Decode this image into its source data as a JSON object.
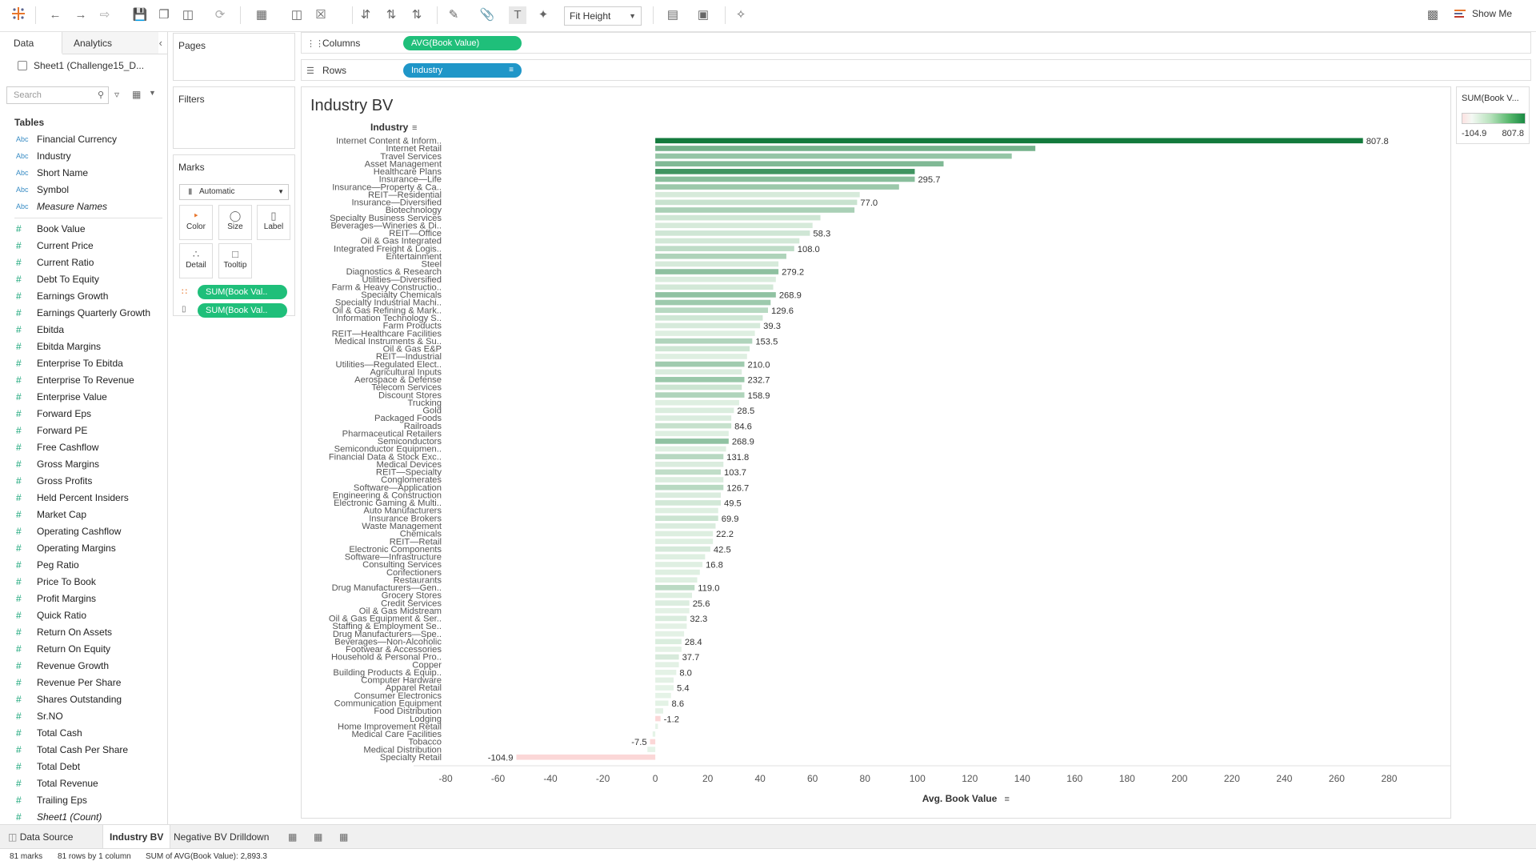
{
  "toolbar": {
    "fit_label": "Fit Height",
    "show_me_label": "Show Me"
  },
  "data_pane": {
    "tabs": [
      "Data",
      "Analytics"
    ],
    "datasource": "Sheet1 (Challenge15_D...",
    "search_placeholder": "Search",
    "tables_label": "Tables",
    "dimensions": [
      {
        "type": "Abc",
        "name": "Financial Currency"
      },
      {
        "type": "Abc",
        "name": "Industry"
      },
      {
        "type": "Abc",
        "name": "Short Name"
      },
      {
        "type": "Abc",
        "name": "Symbol"
      },
      {
        "type": "Abc",
        "name": "Measure Names",
        "italic": true
      }
    ],
    "measures": [
      "Book Value",
      "Current Price",
      "Current Ratio",
      "Debt To Equity",
      "Earnings Growth",
      "Earnings Quarterly Growth",
      "Ebitda",
      "Ebitda Margins",
      "Enterprise To Ebitda",
      "Enterprise To Revenue",
      "Enterprise Value",
      "Forward Eps",
      "Forward PE",
      "Free Cashflow",
      "Gross Margins",
      "Gross Profits",
      "Held Percent Insiders",
      "Market Cap",
      "Operating Cashflow",
      "Operating Margins",
      "Peg Ratio",
      "Price To Book",
      "Profit Margins",
      "Quick Ratio",
      "Return On Assets",
      "Return On Equity",
      "Revenue Growth",
      "Revenue Per Share",
      "Shares Outstanding",
      "Sr.NO",
      "Total Cash",
      "Total Cash Per Share",
      "Total Debt",
      "Total Revenue",
      "Trailing Eps"
    ],
    "count_field": "Sheet1 (Count)",
    "measure_type_glyph": "#"
  },
  "shelves": {
    "pages_label": "Pages",
    "filters_label": "Filters",
    "marks_label": "Marks",
    "marks_type": "Automatic",
    "mark_buttons": [
      "Color",
      "Size",
      "Label",
      "Detail",
      "Tooltip"
    ],
    "marks_pills": [
      "SUM(Book Val..",
      "SUM(Book Val.."
    ],
    "columns_label": "Columns",
    "columns_pill": "AVG(Book Value)",
    "rows_label": "Rows",
    "rows_pill": "Industry"
  },
  "viz": {
    "title": "Industry BV",
    "row_header": "Industry"
  },
  "legend": {
    "title": "SUM(Book V...",
    "min": "-104.9",
    "max": "807.8"
  },
  "chart_data": {
    "type": "bar",
    "orientation": "horizontal",
    "xlabel": "Avg. Book Value",
    "ylabel": "Industry",
    "xlim": [
      -80,
      300
    ],
    "xticks": [
      -80,
      -60,
      -40,
      -20,
      0,
      20,
      40,
      60,
      80,
      100,
      120,
      140,
      160,
      180,
      200,
      220,
      240,
      260,
      280
    ],
    "grid": false,
    "colors": {
      "positive_dark": "#137a3c",
      "positive_light": "#e9f5ea",
      "negative": "#fbd7d7"
    },
    "categories": [
      "Internet Content & Inform..",
      "Internet Retail",
      "Travel Services",
      "Asset Management",
      "Healthcare Plans",
      "Insurance—Life",
      "Insurance—Property & Ca..",
      "REIT—Residential",
      "Insurance—Diversified",
      "Biotechnology",
      "Specialty Business Services",
      "Beverages—Wineries & Di..",
      "REIT—Office",
      "Oil & Gas Integrated",
      "Integrated Freight & Logis..",
      "Entertainment",
      "Steel",
      "Diagnostics & Research",
      "Utilities—Diversified",
      "Farm & Heavy Constructio..",
      "Specialty Chemicals",
      "Specialty Industrial Machi..",
      "Oil & Gas Refining & Mark..",
      "Information Technology S..",
      "Farm Products",
      "REIT—Healthcare Facilities",
      "Medical Instruments & Su..",
      "Oil & Gas E&P",
      "REIT—Industrial",
      "Utilities—Regulated Elect..",
      "Agricultural Inputs",
      "Aerospace & Defense",
      "Telecom Services",
      "Discount Stores",
      "Trucking",
      "Gold",
      "Packaged Foods",
      "Railroads",
      "Pharmaceutical Retailers",
      "Semiconductors",
      "Semiconductor Equipmen..",
      "Financial Data & Stock Exc..",
      "Medical Devices",
      "REIT—Specialty",
      "Conglomerates",
      "Software—Application",
      "Engineering & Construction",
      "Electronic Gaming & Multi..",
      "Auto Manufacturers",
      "Insurance Brokers",
      "Waste Management",
      "Chemicals",
      "REIT—Retail",
      "Electronic Components",
      "Software—Infrastructure",
      "Consulting Services",
      "Confectioners",
      "Restaurants",
      "Drug Manufacturers—Gen..",
      "Grocery Stores",
      "Credit Services",
      "Oil & Gas Midstream",
      "Oil & Gas Equipment & Ser..",
      "Staffing & Employment Se..",
      "Drug Manufacturers—Spe..",
      "Beverages—Non-Alcoholic",
      "Footwear & Accessories",
      "Household & Personal Pro..",
      "Copper",
      "Building Products & Equip..",
      "Computer Hardware",
      "Apparel Retail",
      "Consumer Electronics",
      "Communication Equipment",
      "Food Distribution",
      "Lodging",
      "Home Improvement Retail",
      "Medical Care Facilities",
      "Tobacco",
      "Medical Distribution",
      "Specialty Retail"
    ],
    "values": [
      270,
      145,
      136,
      110,
      99,
      99,
      93,
      78,
      77,
      76,
      63,
      60,
      59,
      55,
      53,
      50,
      47,
      47,
      46,
      45,
      46,
      44,
      43,
      41,
      40,
      38,
      37,
      36,
      35,
      34,
      33,
      34,
      33,
      34,
      32,
      30,
      29,
      29,
      28,
      28,
      27,
      26,
      26,
      25,
      26,
      26,
      25,
      25,
      24,
      24,
      23,
      22,
      22,
      21,
      19,
      18,
      17,
      16,
      15,
      14,
      13,
      13,
      12,
      12,
      11,
      10,
      10,
      9,
      9,
      8,
      7,
      7,
      6,
      5,
      3,
      2,
      1,
      -1,
      -2,
      -3,
      -53
    ],
    "data_labels": [
      "807.8",
      "",
      "",
      "",
      "",
      "295.7",
      "",
      "",
      "77.0",
      "",
      "",
      "",
      "58.3",
      "",
      "108.0",
      "",
      "",
      "279.2",
      "",
      "",
      "268.9",
      "",
      "129.6",
      "",
      "39.3",
      "",
      "153.5",
      "",
      "",
      "210.0",
      "",
      "232.7",
      "",
      "158.9",
      "",
      "28.5",
      "",
      "84.6",
      "",
      "268.9",
      "",
      "131.8",
      "",
      "103.7",
      "",
      "126.7",
      "",
      "49.5",
      "",
      "69.9",
      "",
      "22.2",
      "",
      "42.5",
      "",
      "16.8",
      "",
      "",
      "119.0",
      "",
      "25.6",
      "",
      "32.3",
      "",
      "",
      "28.4",
      "",
      "37.7",
      "",
      "8.0",
      "",
      "5.4",
      "",
      "8.6",
      "",
      "-1.2",
      "",
      "",
      "-7.5",
      "",
      "-104.9"
    ],
    "color_values": [
      807.8,
      380,
      250,
      330,
      600,
      295.7,
      230,
      40,
      77,
      180,
      60,
      40,
      58.3,
      50,
      108,
      160,
      40,
      279.2,
      30,
      50,
      268.9,
      220,
      129.6,
      60,
      39.3,
      20,
      153.5,
      60,
      20,
      210,
      30,
      232.7,
      70,
      158.9,
      20,
      28.5,
      30,
      84.6,
      20,
      268.9,
      20,
      131.8,
      30,
      103.7,
      30,
      126.7,
      30,
      49.5,
      20,
      69.9,
      30,
      22.2,
      20,
      42.5,
      20,
      16.8,
      20,
      20,
      119,
      20,
      25.6,
      10,
      32.3,
      10,
      10,
      28.4,
      10,
      37.7,
      10,
      8,
      10,
      5.4,
      5,
      8.6,
      10,
      -1.2,
      5,
      5,
      -7.5,
      5,
      -104.9
    ]
  },
  "bottom_tabs": [
    "Data Source",
    "Industry BV",
    "Negative BV Drilldown"
  ],
  "status_bar": [
    "81 marks",
    "81 rows by 1 column",
    "SUM of AVG(Book Value): 2,893.3"
  ]
}
